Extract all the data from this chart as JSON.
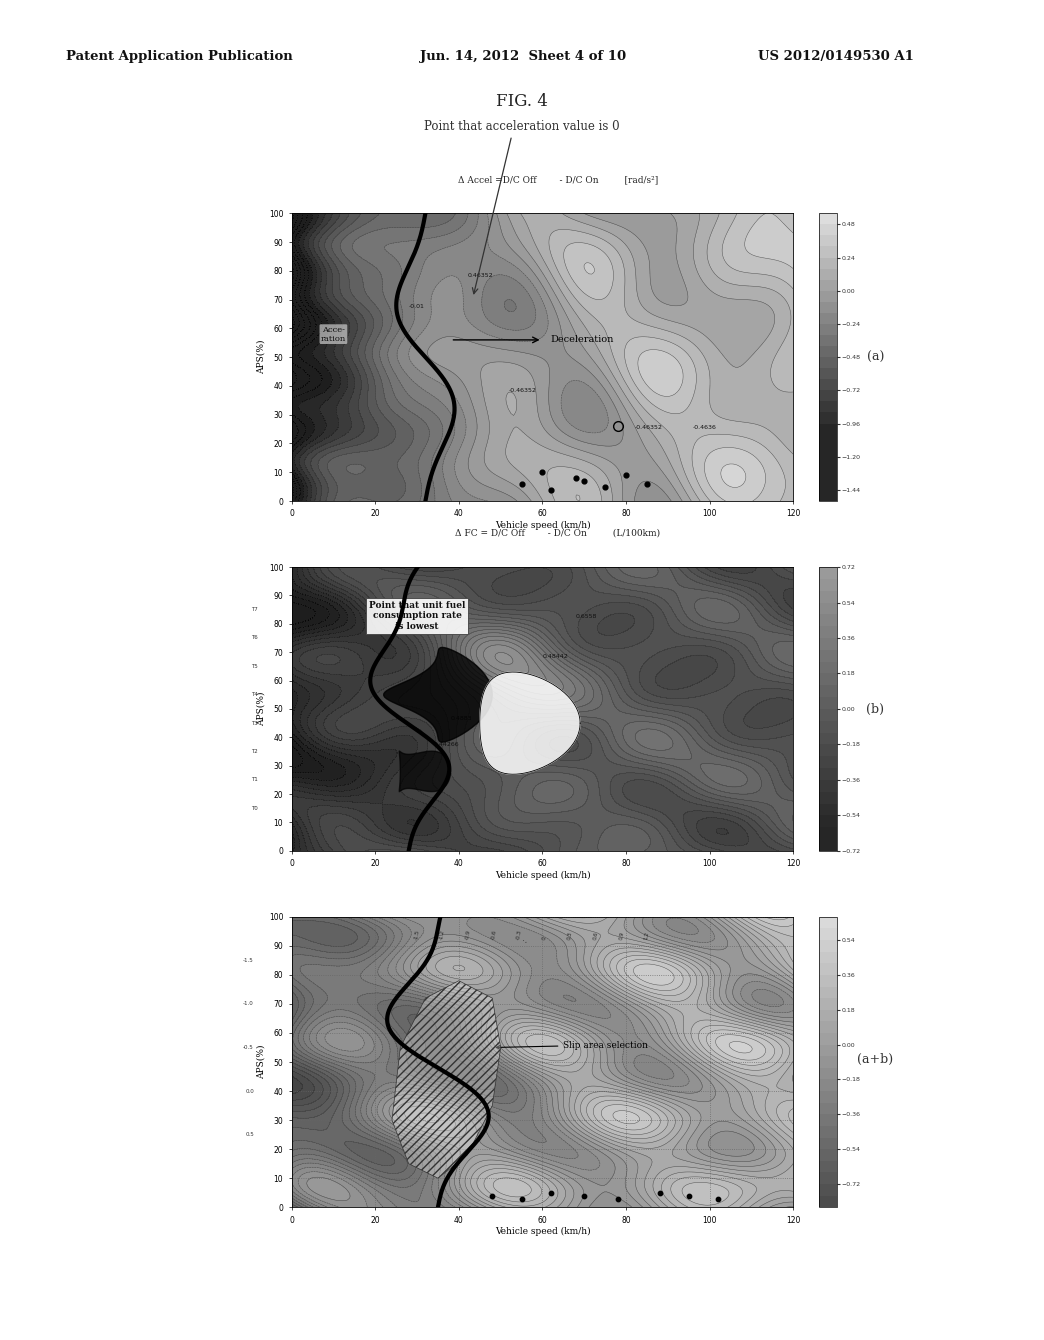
{
  "bg_color": "#ffffff",
  "title": "FIG. 4",
  "subtitle": "Point that acceleration value is 0",
  "header_left": "Patent Application Publication",
  "header_center": "Jun. 14, 2012  Sheet 4 of 10",
  "header_right": "US 2012/0149530 A1",
  "panel_a_title": "Δ Accel =D/C Off        - D/C On         [rad/s²]",
  "panel_b_title": "Δ FC = D/C Off        - D/C On         (L/100km)",
  "xlabel": "Vehicle speed (km/h)",
  "ylabel": "APS(%)",
  "label_a": "(a)",
  "label_b": "(b)",
  "label_ab": "(a+b)",
  "text_deceleration": "Deceleration",
  "text_acceleration": "Acce-\nration",
  "text_fuel": "Point that unit fuel\nconsumption rate\nis lowest",
  "text_slip": "Slip area selection",
  "outer_bg": "#b8b8b8",
  "inner_bg": "#d8d8d8",
  "page_bg": "#f0f0f0"
}
